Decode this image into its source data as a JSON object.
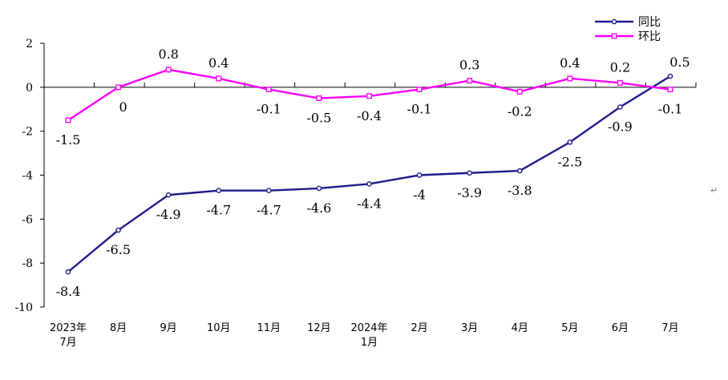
{
  "chart_data": {
    "type": "line",
    "categories": [
      [
        "2023年",
        "7月"
      ],
      [
        "8月"
      ],
      [
        "9月"
      ],
      [
        "10月"
      ],
      [
        "11月"
      ],
      [
        "12月"
      ],
      [
        "2024年",
        "1月"
      ],
      [
        "2月"
      ],
      [
        "3月"
      ],
      [
        "4月"
      ],
      [
        "5月"
      ],
      [
        "6月"
      ],
      [
        "7月"
      ]
    ],
    "series": [
      {
        "name": "同比",
        "color": "#1f1a8a",
        "marker": "circle",
        "values": [
          -8.4,
          -6.5,
          -4.9,
          -4.7,
          -4.7,
          -4.6,
          -4.4,
          -4,
          -3.9,
          -3.8,
          -2.5,
          -0.9,
          0.5
        ]
      },
      {
        "name": "环比",
        "color": "#ff00ff",
        "marker": "square",
        "values": [
          -1.5,
          0,
          0.8,
          0.4,
          -0.1,
          -0.5,
          -0.4,
          -0.1,
          0.3,
          -0.2,
          0.4,
          0.2,
          -0.1
        ]
      }
    ],
    "ylim": [
      -10,
      2
    ],
    "yticks": [
      2,
      0,
      -2,
      -4,
      -6,
      -8,
      -10
    ],
    "title": "",
    "xlabel": "",
    "ylabel": "",
    "legend_position": "top-right",
    "grid": false
  },
  "page_marks": {
    "return_symbol": "↵"
  }
}
